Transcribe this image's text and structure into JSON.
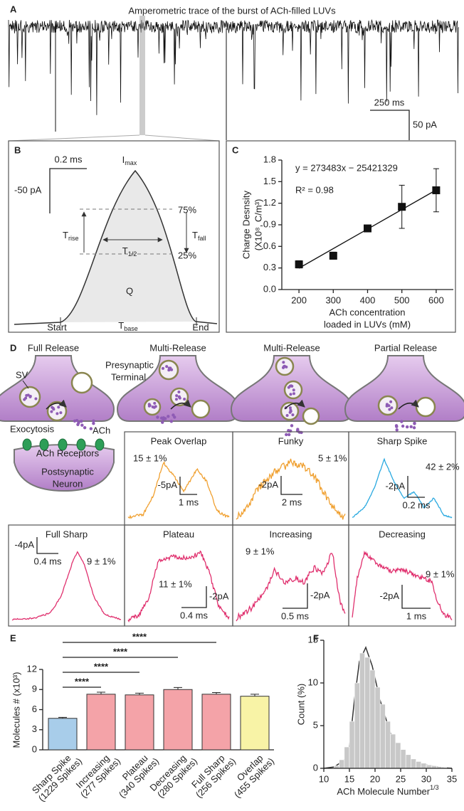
{
  "panel_a": {
    "label": "A",
    "title": "Amperometric trace of the burst of ACh-filled LUVs",
    "time_scale": "250 ms",
    "current_scale": "50 pA"
  },
  "panel_b": {
    "label": "B",
    "time_scale": "0.2 ms",
    "current_scale": "-50 pA",
    "peak": {
      "main": "I",
      "sub": "max"
    },
    "upper": "75%",
    "lower": "25%",
    "rise": {
      "main": "T",
      "sub": "rise"
    },
    "fall": {
      "main": "T",
      "sub": "fall"
    },
    "half": {
      "main": "T",
      "sub": "1/2"
    },
    "charge": "Q",
    "start": "Start",
    "base": {
      "main": "T",
      "sub": "base"
    },
    "end": "End"
  },
  "panel_d": {
    "label": "D",
    "mechanisms": [
      {
        "name": "Full Release",
        "color": "#e5336b"
      },
      {
        "name": "Multi-Release",
        "color": "#f2a93b"
      },
      {
        "name": "Multi-Release",
        "color": "#f2a93b"
      },
      {
        "name": "Partial Release",
        "color": "#29a9e0"
      }
    ],
    "labels": {
      "vesicle": "SV",
      "terminal": [
        "Presynaptic",
        "Terminal"
      ],
      "exocytosis": "Exocytosis",
      "transmitter": "ACh",
      "receptors": "ACh Receptors",
      "neuron": [
        "Postsynaptic",
        "Neuron"
      ]
    },
    "traces": [
      {
        "name": "Peak Overlap",
        "color": "#f0a030",
        "fraction": "15 ± 1%",
        "current_scale": "-5pA",
        "time_scale": "1 ms"
      },
      {
        "name": "Funky",
        "color": "#f0a030",
        "fraction": "5 ± 1%",
        "current_scale": "-2pA",
        "time_scale": "2 ms"
      },
      {
        "name": "Sharp Spike",
        "color": "#29a9e0",
        "fraction": "42 ± 2%",
        "current_scale": "-2pA",
        "time_scale": "0.2 ms"
      },
      {
        "name": "Full Sharp",
        "color": "#e0306e",
        "fraction": "9 ± 1%",
        "current_scale": "-4pA",
        "time_scale": "0.4 ms"
      },
      {
        "name": "Plateau",
        "color": "#e0306e",
        "fraction": "11 ± 1%",
        "current_scale": "-2pA",
        "time_scale": "0.4 ms"
      },
      {
        "name": "Increasing",
        "color": "#e0306e",
        "fraction": "9 ± 1%",
        "current_scale": "-2pA",
        "time_scale": "0.5 ms"
      },
      {
        "name": "Decreasing",
        "color": "#e0306e",
        "fraction": "9 ± 1%",
        "current_scale": "-2pA",
        "time_scale": "1 ms"
      }
    ]
  },
  "chart_data": [
    {
      "type": "scatter",
      "label": "C",
      "equation": "y = 273483x − 25421329",
      "r_squared": "R² = 0.98",
      "ylabel": [
        "Charge Desnsity",
        "(X10⁸, C/m³)"
      ],
      "xlabel": [
        "ACh concentration",
        "loaded in LUVs (mM)"
      ],
      "x": [
        200,
        300,
        400,
        500,
        600
      ],
      "values": [
        0.35,
        0.47,
        0.85,
        1.15,
        1.38
      ],
      "errors": [
        0.05,
        0.05,
        0.03,
        0.3,
        0.3
      ],
      "color": "#111111",
      "xlim": [
        150,
        650
      ],
      "ylim": [
        0,
        1.8
      ],
      "xticks": [
        200,
        300,
        400,
        500,
        600
      ],
      "yticks": [
        {
          "value": 0,
          "label": "0.0"
        },
        0.3,
        0.6,
        0.9,
        1.2,
        1.5,
        1.8
      ]
    },
    {
      "type": "bar",
      "label": "E",
      "ylabel": "Molecules # (x10³)",
      "categories": [
        [
          "Sharp Spike",
          "(1229 Spikes)"
        ],
        [
          "Increasing",
          "(277 Spikes)"
        ],
        [
          "Plateau",
          "(340 Spikes)"
        ],
        [
          "Decreasing",
          "(280 Spikes)"
        ],
        [
          "Full Sharp",
          "(256 Spikes)"
        ],
        [
          "Overlap",
          "(455 Spikes)"
        ]
      ],
      "values": [
        4.7,
        8.3,
        8.2,
        9.0,
        8.3,
        8.0
      ],
      "errors": [
        0.15,
        0.3,
        0.25,
        0.3,
        0.25,
        0.3
      ],
      "colors": [
        "#a8cdea",
        "#f4a3a8",
        "#f4a3a8",
        "#f4a3a8",
        "#f4a3a8",
        "#f8f3a6"
      ],
      "ylim": [
        0,
        12
      ],
      "yticks": [
        0,
        3,
        6,
        9,
        12
      ],
      "significance": [
        "****",
        "****",
        "****",
        "****"
      ]
    },
    {
      "type": "histogram",
      "label": "F",
      "xlabel": "ACh Molecule Number",
      "xlabel_superscript": "1/3",
      "ylabel": "Count (%)",
      "bins": [
        12,
        13,
        14,
        15,
        16,
        17,
        18,
        19,
        20,
        21,
        22,
        23,
        24,
        25,
        26,
        27,
        28,
        29,
        30,
        31,
        32,
        33,
        34
      ],
      "values": [
        0.3,
        1.0,
        2.5,
        5.5,
        10,
        13.5,
        13,
        11.5,
        9.5,
        7.5,
        5.5,
        4,
        3,
        2.2,
        1.6,
        1.1,
        0.8,
        0.6,
        0.4,
        0.3,
        0.2,
        0.1
      ],
      "color": "#c8c8c8",
      "xlim": [
        10,
        35
      ],
      "ylim": [
        0,
        15
      ],
      "xticks": [
        10,
        15,
        20,
        25,
        30,
        35
      ],
      "yticks": [
        0,
        5,
        10,
        15
      ]
    }
  ]
}
